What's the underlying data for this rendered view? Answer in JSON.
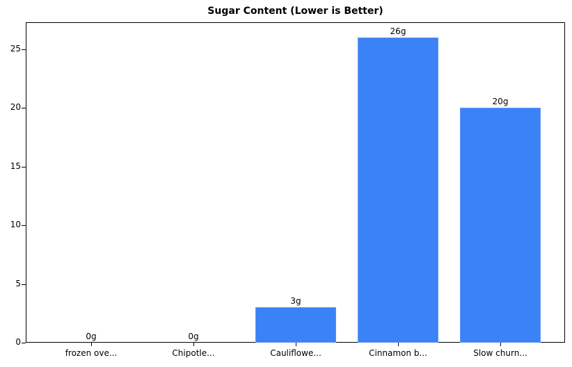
{
  "chart_data": {
    "type": "bar",
    "title": "Sugar Content (Lower is Better)",
    "xlabel": "",
    "ylabel": "",
    "categories": [
      "frozen ove...",
      "Chipotle...",
      "Cauliflowe...",
      "Cinnamon b...",
      "Slow churn..."
    ],
    "values": [
      0,
      0,
      3,
      26,
      20
    ],
    "value_labels": [
      "0g",
      "0g",
      "3g",
      "26g",
      "20g"
    ],
    "ylim": [
      0,
      27.3
    ],
    "yticks": [
      0,
      5,
      10,
      15,
      20,
      25
    ],
    "grid": false,
    "legend": null,
    "bar_color": "#3b82f6"
  }
}
